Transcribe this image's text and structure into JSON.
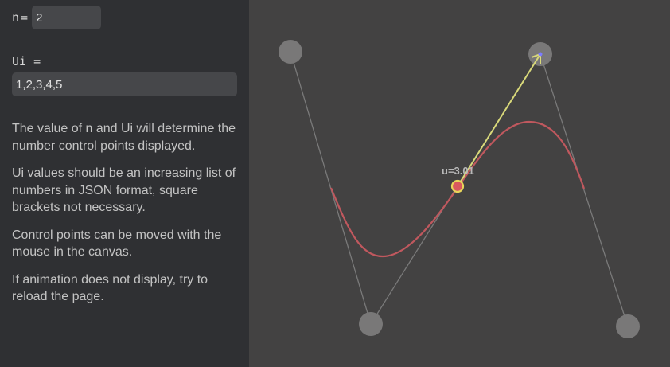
{
  "controls": {
    "n_label": "n",
    "equals": "=",
    "n_value": "2",
    "ui_label": "Ui =",
    "ui_value": "1,2,3,4,5"
  },
  "help": {
    "p1": "The value of n and Ui will determine the number control points displayed.",
    "p2": "Ui values should be an increasing list of numbers in JSON format, square brackets not necessary.",
    "p3": "Control points can be moved with the mouse in the canvas.",
    "p4": "If animation does not display, try to reload the page."
  },
  "canvas": {
    "u_label": "u=3.01",
    "colors": {
      "background": "#434242",
      "control_point": "#797878",
      "polygon": "#7a7a7a",
      "curve": "#c0585e",
      "tangent": "#d9d97a",
      "tangent_tip": "#7b7bff",
      "marker_fill": "#d9595e",
      "marker_ring": "#e8d65a"
    }
  }
}
